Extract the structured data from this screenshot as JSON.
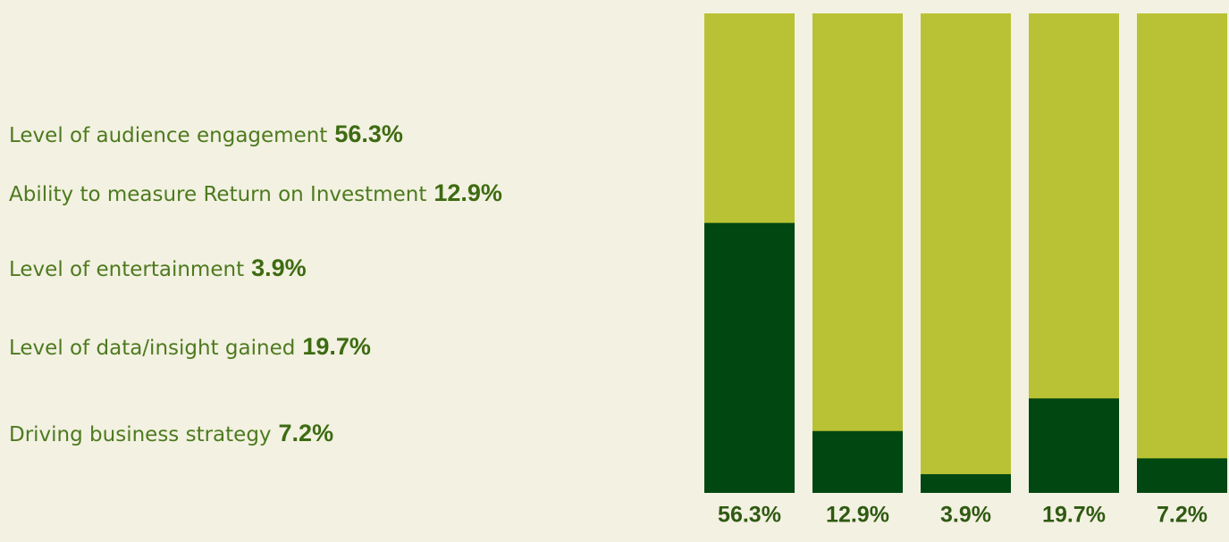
{
  "chart_data": {
    "type": "bar",
    "categories": [
      "Level of audience engagement",
      "Ability to measure Return on Investment",
      "Level of entertainment",
      "Level of data/insight gained",
      "Driving business strategy"
    ],
    "values": [
      56.3,
      12.9,
      3.9,
      19.7,
      7.2
    ],
    "value_labels": [
      "56.3%",
      "12.9%",
      "3.9%",
      "19.7%",
      "7.2%"
    ],
    "ylim": [
      0,
      100
    ],
    "color": "#004712",
    "track_color": "#b9c234"
  }
}
